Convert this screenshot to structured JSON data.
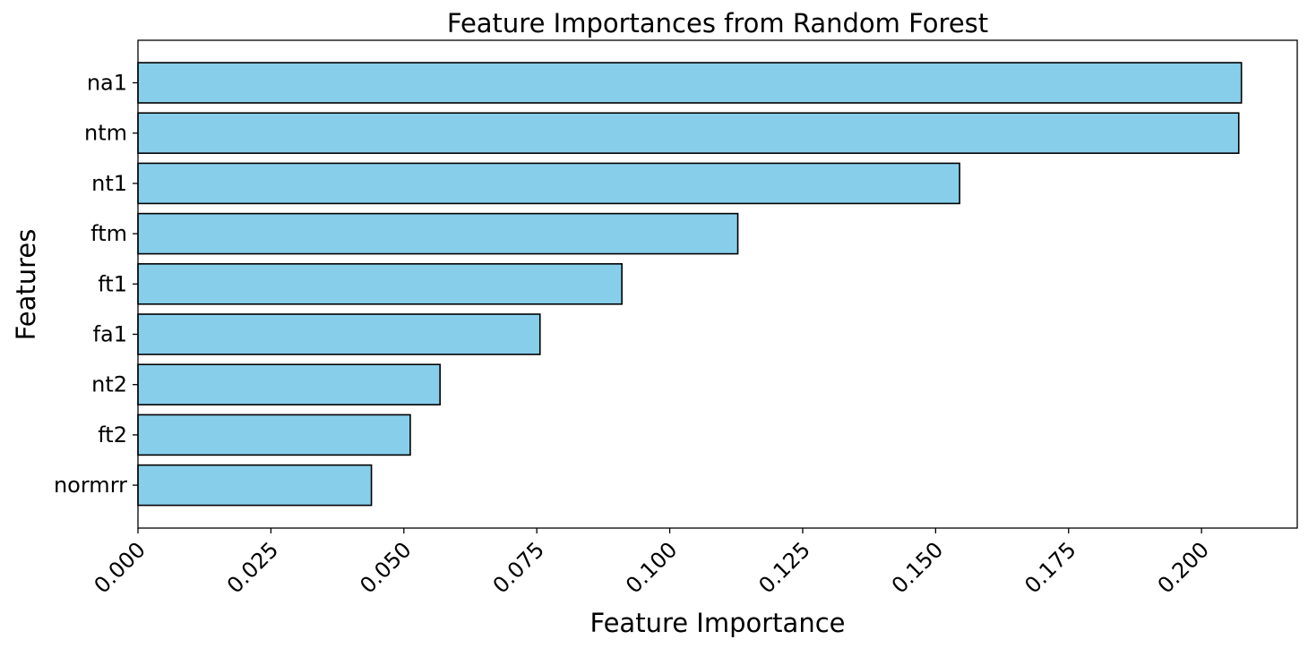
{
  "chart_data": {
    "type": "bar",
    "orientation": "horizontal",
    "title": "Feature Importances from Random Forest",
    "xlabel": "Feature Importance",
    "ylabel": "Features",
    "categories": [
      "na1",
      "ntm",
      "nt1",
      "ftm",
      "ft1",
      "fa1",
      "nt2",
      "ft2",
      "normrr"
    ],
    "values": [
      0.2075,
      0.207,
      0.1545,
      0.1128,
      0.091,
      0.0756,
      0.0568,
      0.0512,
      0.0439
    ],
    "xlim": [
      0,
      0.218
    ],
    "xticks": [
      0.0,
      0.025,
      0.05,
      0.075,
      0.1,
      0.125,
      0.15,
      0.175,
      0.2
    ],
    "xtick_labels": [
      "0.000",
      "0.025",
      "0.050",
      "0.075",
      "0.100",
      "0.125",
      "0.150",
      "0.175",
      "0.200"
    ],
    "grid": false,
    "bar_color": "#87ceeb",
    "bar_edge_color": "#000000"
  }
}
